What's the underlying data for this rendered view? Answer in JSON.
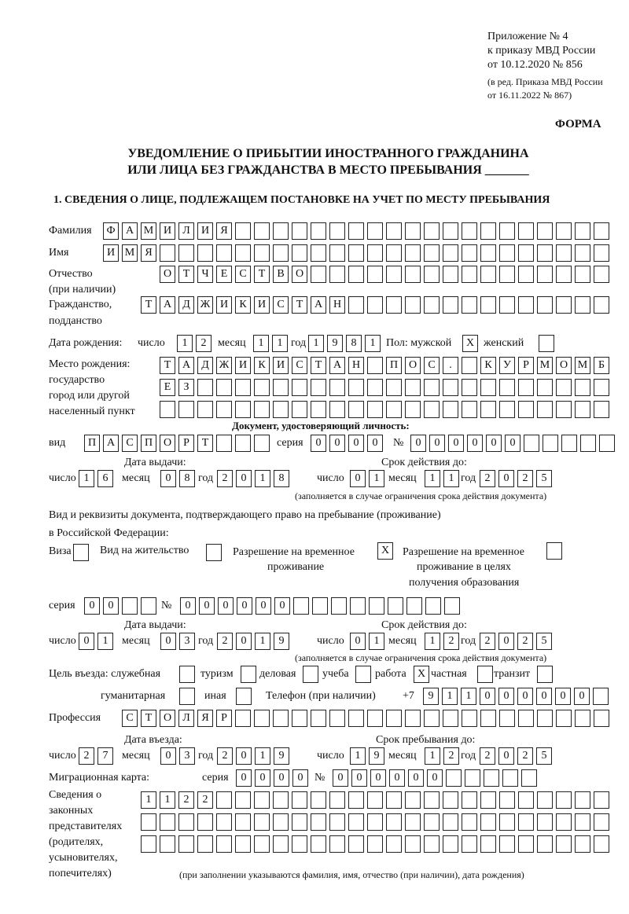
{
  "header": {
    "l1": "Приложение № 4",
    "l2": "к приказу МВД России",
    "l3": "от 10.12.2020 № 856",
    "l4": "(в ред. Приказа МВД России",
    "l5": "от 16.11.2022 № 867)",
    "forma": "ФОРМА"
  },
  "title": {
    "l1": "УВЕДОМЛЕНИЕ О ПРИБЫТИИ ИНОСТРАННОГО ГРАЖДАНИНА",
    "l2": "ИЛИ ЛИЦА БЕЗ ГРАЖДАНСТВА В МЕСТО ПРЕБЫВАНИЯ _______"
  },
  "section1": "1. СВЕДЕНИЯ О ЛИЦЕ, ПОДЛЕЖАЩЕМ ПОСТАНОВКЕ НА УЧЕТ ПО МЕСТУ ПРЕБЫВАНИЯ",
  "labels": {
    "surname": "Фамилия",
    "name": "Имя",
    "patronymic": "Отчество",
    "if_any": "(при наличии)",
    "citizenship": "Гражданство,",
    "citizenship2": "подданство",
    "birth_date": "Дата рождения:",
    "day": "число",
    "month": "месяц",
    "year": "год",
    "sex": "Пол: мужской",
    "female": "женский",
    "birthplace1": "Место рождения:",
    "birthplace2": "государство",
    "birthplace3": "город или другой",
    "birthplace4": "населенный пункт",
    "id_doc": "Документ, удостоверяющий личность:",
    "kind": "вид",
    "series": "серия",
    "number": "№",
    "issue_date": "Дата выдачи:",
    "valid_until": "Срок действия до:",
    "valid_note": "(заполняется в случае ограничения срока действия документа)",
    "right_doc1": "Вид и реквизиты документа, подтверждающего право на пребывание (проживание)",
    "right_doc2": "в Российской Федерации:",
    "visa": "Виза",
    "residence": "Вид на жительство",
    "temp1": "Разрешение на временное",
    "temp2": "проживание",
    "edu1": "Разрешение на временное",
    "edu2": "проживание в целях",
    "edu3": "получения образования",
    "purpose": "Цель въезда: служебная",
    "tourism": "туризм",
    "business": "деловая",
    "study": "учеба",
    "work": "работа",
    "private": "частная",
    "transit": "транзит",
    "humanitarian": "гуманитарная",
    "other": "иная",
    "phone": "Телефон (при наличии)",
    "phone_prefix": "+7",
    "profession": "Профессия",
    "entry_date": "Дата въезда:",
    "stay_until": "Срок пребывания до:",
    "migration_card": "Миграционная карта:",
    "rep1": "Сведения о",
    "rep2": "законных",
    "rep3": "представителях",
    "rep4": "(родителях,",
    "rep5": "усыновителях,",
    "rep6": "попечителях)",
    "rep_note": "(при заполнении указываются фамилия, имя, отчество (при наличии), дата рождения)"
  },
  "fields": {
    "surname": "ФАМИЛИЯ",
    "name": "ИМЯ",
    "patronymic": "ОТЧЕСТВО",
    "citizenship": "ТАДЖИКИСТАН",
    "birth_day": "12",
    "birth_month": "11",
    "birth_year": "1981",
    "sex_male": "X",
    "sex_female": "",
    "birthplace1": "ТАДЖИКИСТАН ПОС. КУРМОМБ",
    "birthplace2": "ЕЗ",
    "birthplace3": "",
    "doc_kind": "ПАСПОРТ",
    "doc_series": "0000",
    "doc_number": "000000",
    "doc_issue_day": "16",
    "doc_issue_month": "08",
    "doc_issue_year": "2018",
    "doc_valid_day": "01",
    "doc_valid_month": "11",
    "doc_valid_year": "2025",
    "visa": "",
    "residence": "",
    "temp_residence": "X",
    "temp_residence_edu": "",
    "right_series": "00",
    "right_number": "000000",
    "right_issue_day": "01",
    "right_issue_month": "03",
    "right_issue_year": "2019",
    "right_valid_day": "01",
    "right_valid_month": "12",
    "right_valid_year": "2025",
    "p_service": "",
    "p_tourism": "",
    "p_business": "",
    "p_study": "",
    "p_work": "X",
    "p_private": "",
    "p_transit": "",
    "p_humanitarian": "",
    "p_other": "",
    "phone": "911000000",
    "profession": "СТОЛЯР",
    "entry_day": "27",
    "entry_month": "03",
    "entry_year": "2019",
    "stay_day": "19",
    "stay_month": "12",
    "stay_year": "2025",
    "mig_series": "0000",
    "mig_number": "000000",
    "rep1": "1122",
    "rep2": "",
    "rep3": ""
  }
}
